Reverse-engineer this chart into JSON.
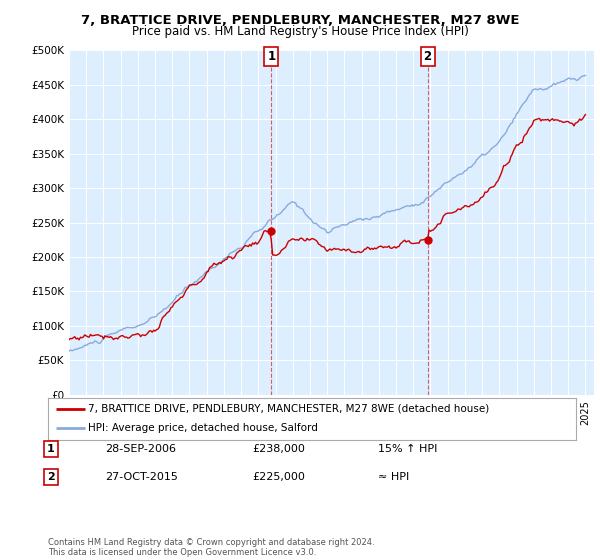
{
  "title": "7, BRATTICE DRIVE, PENDLEBURY, MANCHESTER, M27 8WE",
  "subtitle": "Price paid vs. HM Land Registry's House Price Index (HPI)",
  "ylabel_ticks": [
    "£0",
    "£50K",
    "£100K",
    "£150K",
    "£200K",
    "£250K",
    "£300K",
    "£350K",
    "£400K",
    "£450K",
    "£500K"
  ],
  "ytick_values": [
    0,
    50000,
    100000,
    150000,
    200000,
    250000,
    300000,
    350000,
    400000,
    450000,
    500000
  ],
  "ylim": [
    0,
    500000
  ],
  "xlim_start": 1995.0,
  "xlim_end": 2025.5,
  "sale1_x": 2006.75,
  "sale1_y": 238000,
  "sale1_label": "1",
  "sale1_date": "28-SEP-2006",
  "sale1_price": "£238,000",
  "sale1_hpi": "15% ↑ HPI",
  "sale2_x": 2015.83,
  "sale2_y": 225000,
  "sale2_label": "2",
  "sale2_date": "27-OCT-2015",
  "sale2_price": "£225,000",
  "sale2_hpi": "≈ HPI",
  "line1_color": "#cc0000",
  "line2_color": "#88aadd",
  "background_color": "#ddeeff",
  "legend1": "7, BRATTICE DRIVE, PENDLEBURY, MANCHESTER, M27 8WE (detached house)",
  "legend2": "HPI: Average price, detached house, Salford",
  "footer": "Contains HM Land Registry data © Crown copyright and database right 2024.\nThis data is licensed under the Open Government Licence v3.0.",
  "title_fontsize": 9.5,
  "subtitle_fontsize": 8.5
}
